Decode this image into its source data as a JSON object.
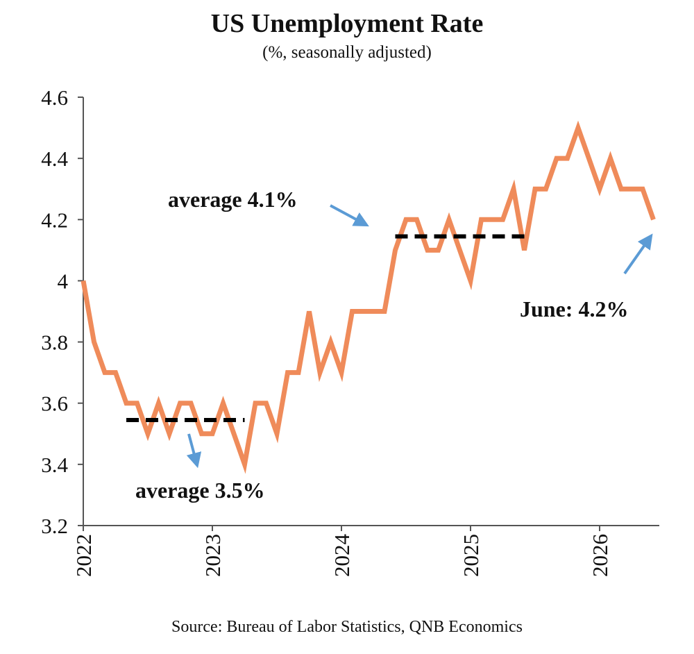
{
  "chart_data": {
    "type": "line",
    "title": "US Unemployment Rate",
    "subtitle": "(%, seasonally adjusted)",
    "source": "Source: Bureau of Labor Statistics, QNB Economics",
    "x_start": "2022-01",
    "x_ticks": [
      "2022",
      "2023",
      "2024",
      "2025",
      "2026"
    ],
    "y_ticks": [
      "3.2",
      "3.4",
      "3.6",
      "3.8",
      "4",
      "4.2",
      "4.4",
      "4.6"
    ],
    "ylim": [
      3.2,
      4.6
    ],
    "series": [
      {
        "color": "#ef8b5a",
        "values": [
          4.0,
          3.8,
          3.7,
          3.7,
          3.6,
          3.6,
          3.5,
          3.6,
          3.5,
          3.6,
          3.6,
          3.5,
          3.5,
          3.6,
          3.5,
          3.4,
          3.6,
          3.6,
          3.5,
          3.7,
          3.7,
          3.9,
          3.7,
          3.8,
          3.7,
          3.9,
          3.9,
          3.9,
          3.9,
          4.1,
          4.2,
          4.2,
          4.1,
          4.1,
          4.2,
          4.1,
          4.0,
          4.2,
          4.2,
          4.2,
          4.3,
          4.1,
          4.3,
          4.3,
          4.4,
          4.4,
          4.5,
          4.4,
          4.3,
          4.4,
          4.3,
          4.3,
          4.3,
          4.2
        ]
      }
    ],
    "reference_lines": [
      {
        "value": 3.545,
        "from": 4,
        "to": 15,
        "color": "#000000"
      },
      {
        "value": 4.145,
        "from": 29,
        "to": 41,
        "color": "#000000"
      }
    ],
    "annotations": [
      {
        "text": "average 4.1%",
        "arrow_color": "#5b9bd5"
      },
      {
        "text": "average 3.5%",
        "arrow_color": "#5b9bd5"
      },
      {
        "text": "June: 4.2%",
        "arrow_color": "#5b9bd5"
      }
    ],
    "grid": false,
    "legend": "none"
  }
}
